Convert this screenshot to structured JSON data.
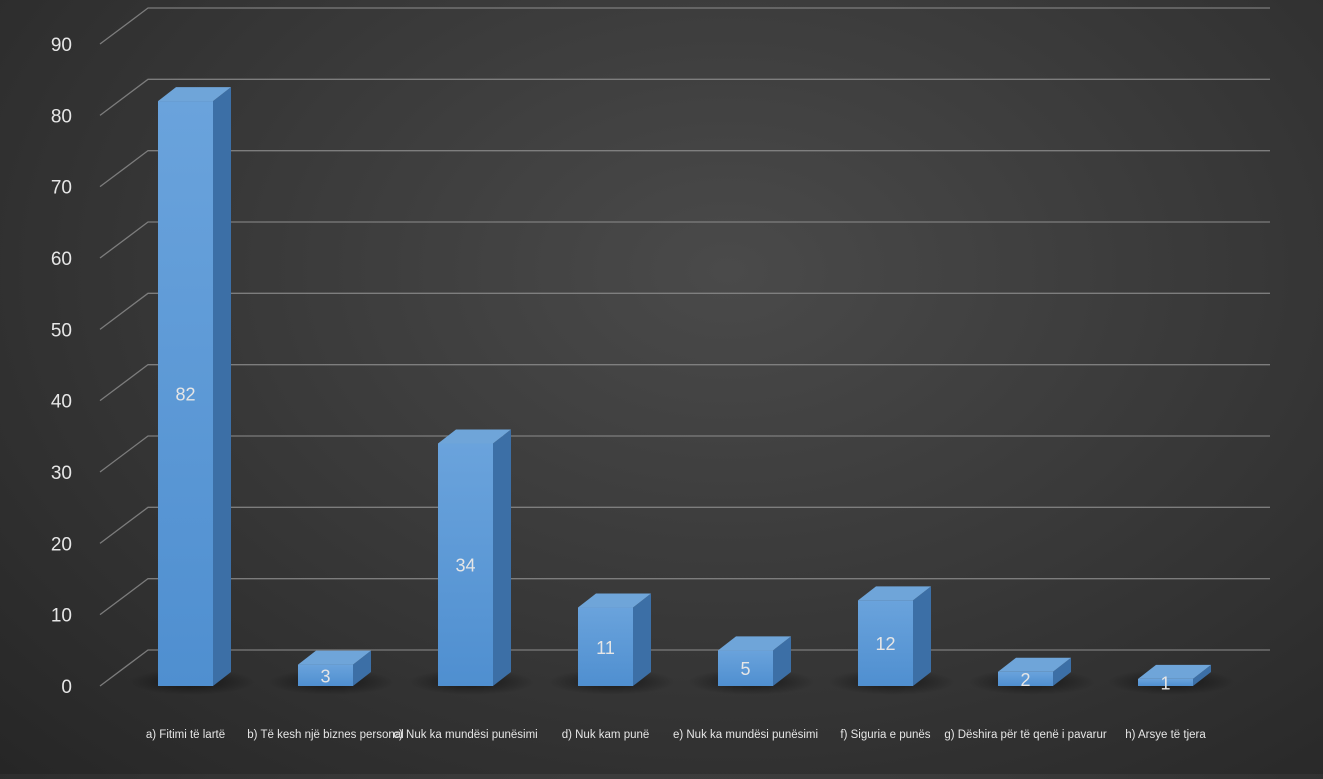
{
  "chart_data": {
    "type": "bar",
    "style": "3d-column",
    "categories": [
      "a) Fitimi të lartë",
      "b) Të kesh një biznes personal",
      "c) Nuk ka mundësi punësimi",
      "d) Nuk kam punë",
      "e) Nuk ka mundësi punësimi",
      "f) Siguria e punës",
      "g) Dëshira për të qenë i pavarur",
      "h) Arsye të tjera"
    ],
    "series": [
      {
        "values": [
          82,
          3,
          34,
          11,
          5,
          12,
          2,
          1
        ]
      }
    ],
    "data_labels": [
      "82",
      "3",
      "34",
      "11",
      "5",
      "12",
      "2",
      "1"
    ],
    "ylim": [
      0,
      90
    ],
    "yticks": [
      0,
      10,
      20,
      30,
      40,
      50,
      60,
      70,
      80,
      90
    ],
    "ytick_labels": [
      "0",
      "10",
      "20",
      "30",
      "40",
      "50",
      "60",
      "70",
      "80",
      "90"
    ],
    "grid": true,
    "title": "",
    "xlabel": "",
    "ylabel": "",
    "colors": {
      "bar_front": "#5b9bd5",
      "bar_side": "#3c6fa6",
      "bar_top": "#6fa5d9",
      "grid": "#8a8a8a",
      "text": "#e6e6e6"
    }
  }
}
